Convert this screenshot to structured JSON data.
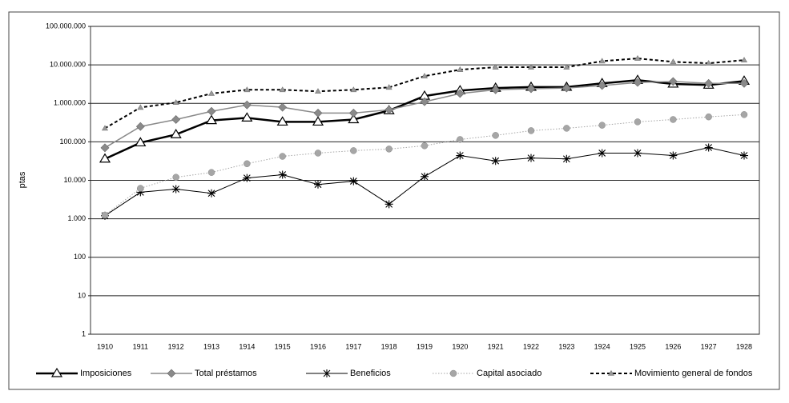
{
  "chart_data": {
    "type": "line",
    "y_label": "ptas",
    "yscale": "log",
    "grid": true,
    "legend": "bottom",
    "categories": [
      "1910",
      "1911",
      "1912",
      "1913",
      "1914",
      "1915",
      "1916",
      "1917",
      "1918",
      "1919",
      "1920",
      "1921",
      "1922",
      "1923",
      "1924",
      "1925",
      "1926",
      "1927",
      "1928"
    ],
    "ylim": [
      1,
      100000000
    ],
    "yticks": [
      1,
      10,
      100,
      {
        "value": 1000,
        "label": "1.000"
      },
      {
        "value": 10000,
        "label": "10.000"
      },
      {
        "value": 100000,
        "label": "100.000"
      },
      {
        "value": 1000000,
        "label": "1.000.000"
      },
      {
        "value": 10000000,
        "label": "10.000.000"
      },
      {
        "value": 100000000,
        "label": "100.000.000"
      }
    ],
    "series": [
      {
        "name": "Imposiciones",
        "color": "#000000",
        "marker": "triangle",
        "line_style": "solid",
        "line_width": 2.5,
        "values": [
          36000,
          95000,
          155000,
          360000,
          420000,
          330000,
          330000,
          380000,
          650000,
          1550000,
          2150000,
          2500000,
          2650000,
          2650000,
          3300000,
          4000000,
          3200000,
          3000000,
          3800000
        ]
      },
      {
        "name": "Total préstamos",
        "color": "#8a8a8a",
        "marker": "diamond",
        "line_style": "solid",
        "line_width": 1.5,
        "values": [
          70000,
          250000,
          380000,
          620000,
          910000,
          790000,
          560000,
          560000,
          680000,
          1100000,
          1800000,
          2250000,
          2400000,
          2500000,
          2900000,
          3500000,
          3700000,
          3300000,
          3300000
        ]
      },
      {
        "name": "Beneficios",
        "color": "#000000",
        "marker": "star",
        "line_style": "solid",
        "line_width": 1,
        "values": [
          1200,
          4900,
          5900,
          4600,
          11500,
          14000,
          7800,
          9500,
          2400,
          12500,
          44000,
          32000,
          38000,
          36000,
          51000,
          51000,
          44000,
          71000,
          44000
        ]
      },
      {
        "name": "Capital asociado",
        "color": "#a6a6a6",
        "marker": "circle",
        "line_style": "dotted",
        "line_width": 1,
        "values": [
          1250,
          6200,
          12000,
          16000,
          27000,
          42000,
          51000,
          59000,
          65000,
          79000,
          115000,
          147000,
          195000,
          225000,
          270000,
          330000,
          380000,
          445000,
          510000
        ]
      },
      {
        "name": "Movimiento general de fondos",
        "color": "#000000",
        "marker": "small-triangle",
        "line_style": "dashed",
        "line_width": 2,
        "values": [
          225000,
          780000,
          1050000,
          1800000,
          2250000,
          2250000,
          2050000,
          2250000,
          2600000,
          5100000,
          7500000,
          8700000,
          8700000,
          8700000,
          12500000,
          14700000,
          12000000,
          11000000,
          13300000
        ]
      }
    ]
  }
}
